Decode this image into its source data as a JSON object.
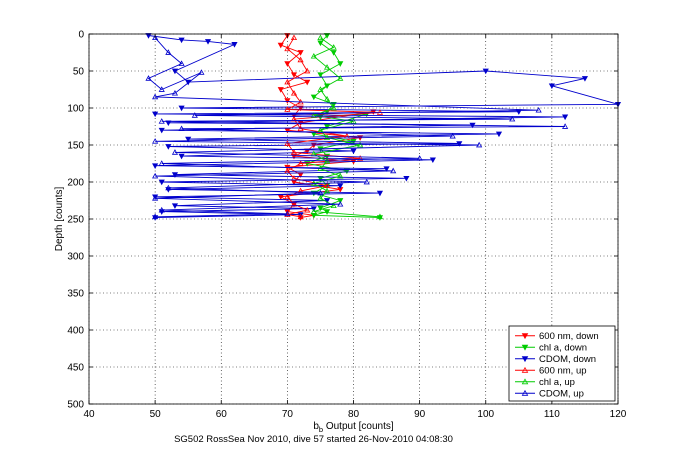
{
  "chart_data": {
    "type": "scatter",
    "xlabel": "b",
    "xlabel_sub": "b",
    "xlabel_rest": " Output [counts]",
    "ylabel": "Depth [counts]",
    "caption": "SG502 RossSea Nov 2010, dive 57 started 26-Nov-2010 04:08:30",
    "xlim": [
      40,
      120
    ],
    "ylim": [
      0,
      500
    ],
    "y_reversed": true,
    "grid": true,
    "legend_position": "bottom-right",
    "xticks": [
      "40",
      "50",
      "60",
      "70",
      "80",
      "90",
      "100",
      "110",
      "120"
    ],
    "yticks": [
      "0",
      "50",
      "100",
      "150",
      "200",
      "250",
      "300",
      "350",
      "400",
      "450",
      "500"
    ],
    "series": [
      {
        "name": "600 nm, down",
        "color": "#ff0000",
        "marker": "triangle-down",
        "connected": true,
        "x": [
          70,
          69,
          72,
          70,
          71,
          73,
          69,
          70,
          72,
          71,
          83,
          72,
          70,
          81,
          74,
          73,
          71,
          80,
          70,
          72,
          71,
          78,
          69,
          71,
          70,
          74,
          72
        ],
        "y": [
          2,
          15,
          25,
          40,
          55,
          65,
          75,
          90,
          100,
          110,
          105,
          120,
          130,
          140,
          150,
          158,
          165,
          172,
          180,
          190,
          200,
          210,
          220,
          230,
          240,
          245,
          248
        ]
      },
      {
        "name": "chl a, down",
        "color": "#00cc00",
        "marker": "triangle-down",
        "connected": true,
        "x": [
          76,
          75,
          77,
          78,
          75,
          76,
          74,
          77,
          76,
          75,
          82,
          76,
          74,
          80,
          75,
          76,
          73,
          79,
          75,
          76,
          74,
          78,
          75,
          76,
          74,
          84
        ],
        "y": [
          2,
          12,
          25,
          40,
          55,
          70,
          85,
          95,
          105,
          112,
          108,
          125,
          135,
          145,
          155,
          165,
          175,
          185,
          195,
          205,
          215,
          225,
          235,
          240,
          245,
          248
        ]
      },
      {
        "name": "CDOM, down",
        "color": "#0000cc",
        "marker": "triangle-down",
        "connected": true,
        "x": [
          49,
          54,
          58,
          62,
          53,
          55,
          100,
          115,
          110,
          120,
          54,
          105,
          50,
          112,
          52,
          98,
          51,
          102,
          55,
          96,
          52,
          80,
          54,
          92,
          50,
          85,
          53,
          88,
          51,
          78,
          52,
          84,
          50,
          76,
          53,
          74,
          51,
          72,
          50
        ],
        "y": [
          2,
          8,
          10,
          14,
          50,
          65,
          50,
          60,
          70,
          95,
          100,
          105,
          108,
          112,
          120,
          123,
          130,
          135,
          142,
          148,
          152,
          158,
          165,
          170,
          178,
          182,
          190,
          195,
          200,
          205,
          210,
          215,
          220,
          225,
          232,
          236,
          240,
          244,
          248
        ]
      },
      {
        "name": "600 nm, up",
        "color": "#ff0000",
        "marker": "triangle-up",
        "connected": true,
        "x": [
          71,
          70,
          72,
          73,
          70,
          71,
          72,
          70,
          84,
          71,
          72,
          79,
          70,
          71,
          81,
          72,
          70,
          71,
          76,
          72,
          70,
          71,
          73,
          70,
          72
        ],
        "y": [
          5,
          20,
          35,
          50,
          65,
          80,
          92,
          102,
          106,
          115,
          128,
          138,
          148,
          160,
          168,
          175,
          185,
          195,
          205,
          212,
          220,
          230,
          238,
          244,
          247
        ]
      },
      {
        "name": "chl a, up",
        "color": "#00cc00",
        "marker": "triangle-up",
        "connected": true,
        "x": [
          75,
          77,
          74,
          76,
          78,
          75,
          76,
          77,
          74,
          80,
          75,
          76,
          81,
          74,
          76,
          75,
          78,
          74,
          76,
          75,
          77,
          74,
          84
        ],
        "y": [
          5,
          18,
          30,
          45,
          60,
          75,
          88,
          100,
          110,
          118,
          130,
          140,
          150,
          162,
          172,
          182,
          192,
          202,
          212,
          222,
          232,
          240,
          247
        ]
      },
      {
        "name": "CDOM, up",
        "color": "#0000cc",
        "marker": "triangle-up",
        "connected": true,
        "x": [
          50,
          52,
          54,
          49,
          51,
          57,
          53,
          50,
          108,
          56,
          104,
          51,
          112,
          54,
          95,
          50,
          99,
          53,
          90,
          51,
          86,
          50,
          82,
          52,
          75,
          50,
          78,
          51,
          70,
          50
        ],
        "y": [
          5,
          25,
          40,
          60,
          75,
          52,
          80,
          85,
          103,
          110,
          115,
          118,
          125,
          128,
          138,
          145,
          150,
          160,
          168,
          175,
          185,
          192,
          200,
          208,
          215,
          222,
          230,
          238,
          243,
          247
        ]
      }
    ]
  }
}
